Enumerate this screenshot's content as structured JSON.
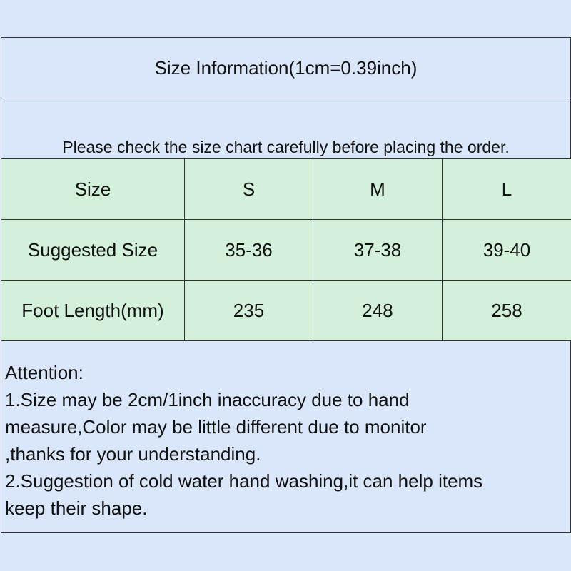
{
  "title": "Size Information(1cm=0.39inch)",
  "note": "Please check the size chart carefully before placing the order.",
  "table": {
    "header": [
      "Size",
      "S",
      "M",
      "L"
    ],
    "rows": [
      [
        "Suggested Size",
        "35-36",
        "37-38",
        "39-40"
      ],
      [
        "Foot Length(mm)",
        "235",
        "248",
        "258"
      ]
    ]
  },
  "attention": {
    "heading": "Attention:",
    "lines": [
      "1.Size may be 2cm/1inch inaccuracy due to hand",
      "measure,Color may be little different due to monitor",
      ",thanks for your understanding.",
      "2.Suggestion of cold water hand washing,it can help items",
      "keep their shape."
    ]
  },
  "colors": {
    "background": "#dae7fb",
    "table_fill": "#d3f0da",
    "border": "#333333"
  }
}
